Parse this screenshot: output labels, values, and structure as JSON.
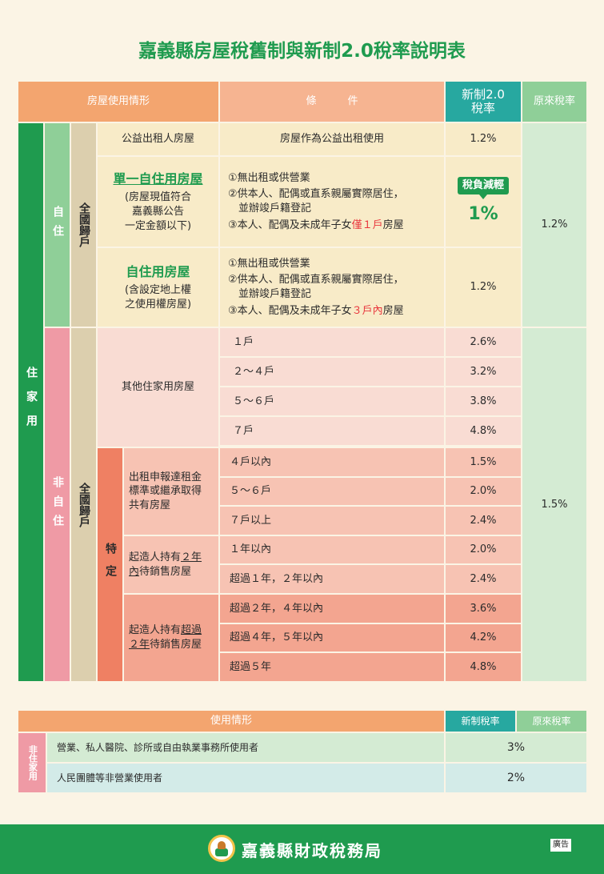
{
  "title": "嘉義縣房屋稅舊制與新制2.0稅率說明表",
  "header": {
    "usage": "房屋使用情形",
    "condition": "條　　　件",
    "new_rate": "新制2.0\n稅率",
    "old_rate": "原來稅率"
  },
  "groups": {
    "residential": "住家用",
    "self_use": "自住",
    "non_self_use": "非自住",
    "nationwide_self": "全國歸戶",
    "nationwide_non": "全國歸戶",
    "special": "特定"
  },
  "rows": {
    "public_rental": {
      "name": "公益出租人房屋",
      "condition": "房屋作為公益出租使用",
      "rate": "1.2%"
    },
    "single_self": {
      "name": "單一自住用房屋",
      "note": "(房屋現值符合\n嘉義縣公告\n一定金額以下)",
      "c1": "①無出租或供營業",
      "c2": "②供本人、配偶或直系親屬實際居住，\n　並辦竣戶籍登記",
      "c3a": "③本人、配偶及未成年子女",
      "c3b": "僅１戶",
      "c3c": "房屋",
      "badge": "稅負減輕",
      "rate": "1%"
    },
    "self_use_house": {
      "name": "自住用房屋",
      "note": "(含設定地上權\n之使用權房屋)",
      "c1": "①無出租或供營業",
      "c2": "②供本人、配偶或直系親屬實際居住，\n　並辦竣戶籍登記",
      "c3a": "③本人、配偶及未成年子女",
      "c3b": "３戶內",
      "c3c": "房屋",
      "rate": "1.2%"
    },
    "old_rate_self": "1.2%",
    "other_res": {
      "name": "其他住家用房屋",
      "items": [
        {
          "cond": "１戶",
          "rate": "2.6%"
        },
        {
          "cond": "２～４戶",
          "rate": "3.2%"
        },
        {
          "cond": "５～６戶",
          "rate": "3.8%"
        },
        {
          "cond": "７戶",
          "rate": "4.8%"
        }
      ]
    },
    "rental": {
      "name": "出租申報達租金\n標準或繼承取得\n共有房屋",
      "items": [
        {
          "cond": "４戶以內",
          "rate": "1.5%"
        },
        {
          "cond": "５～６戶",
          "rate": "2.0%"
        },
        {
          "cond": "７戶以上",
          "rate": "2.4%"
        }
      ]
    },
    "builder_2": {
      "name_a": "起造人持有",
      "name_b": "２年",
      "name_c": "內",
      "name_d": "待銷售房屋",
      "items": [
        {
          "cond": "１年以內",
          "rate": "2.0%"
        },
        {
          "cond": "超過１年，２年以內",
          "rate": "2.4%"
        }
      ]
    },
    "builder_over": {
      "name_a": "起造人持有",
      "name_b": "超過",
      "name_c": "２年",
      "name_d": "待銷售房屋",
      "items": [
        {
          "cond": "超過２年，４年以內",
          "rate": "3.6%"
        },
        {
          "cond": "超過４年，５年以內",
          "rate": "4.2%"
        },
        {
          "cond": "超過５年",
          "rate": "4.8%"
        }
      ]
    },
    "old_rate_non": "1.5%"
  },
  "table2": {
    "usage": "使用情形",
    "new_rate": "新制稅率",
    "old_rate": "原來稅率",
    "group": "非住家用",
    "rows": [
      {
        "name": "營業、私人醫院、診所或自由執業事務所使用者",
        "rate": "3%"
      },
      {
        "name": "人民團體等非營業使用者",
        "rate": "2%"
      }
    ]
  },
  "footer": {
    "agency": "嘉義縣財政稅務局",
    "ad": "廣告"
  },
  "colors": {
    "green": "#1f9b4f",
    "orange": "#f0a070",
    "red": "#e8343b"
  }
}
